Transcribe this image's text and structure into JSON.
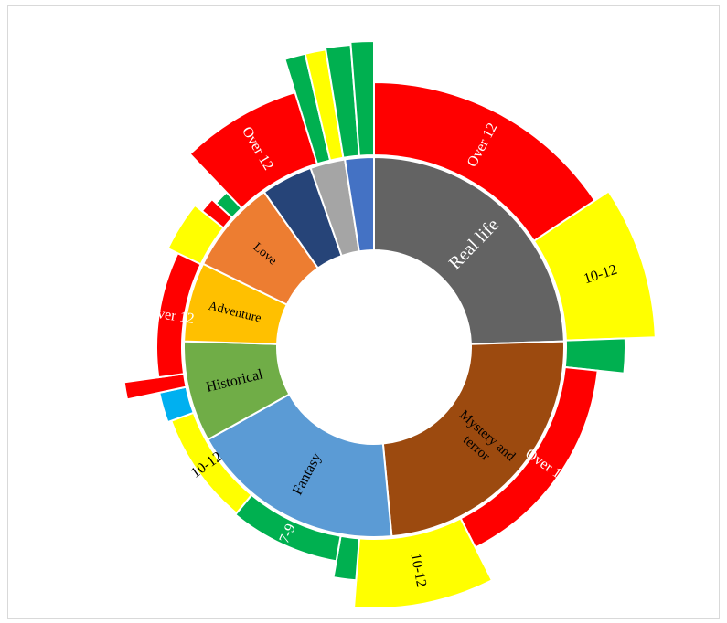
{
  "chart_data": {
    "type": "sunburst",
    "title": "",
    "colors": {
      "age_over_12": "#ff0000",
      "age_10_12": "#ffff00",
      "age_7_9": "#00b050",
      "age_other": "#00b0f0"
    },
    "inner_ring": [
      {
        "label": "Real life",
        "value": 24.0,
        "color": "#636363",
        "text_color": "#ffffff"
      },
      {
        "label": "Mystery and terror",
        "value": 23.5,
        "color": "#9c4a0f",
        "text_color": "#000000"
      },
      {
        "label": "Fantasy",
        "value": 18.0,
        "color": "#5b9bd5",
        "text_color": "#000000"
      },
      {
        "label": "Historical",
        "value": 8.4,
        "color": "#70ad47",
        "text_color": "#000000"
      },
      {
        "label": "Adventure",
        "value": 6.6,
        "color": "#ffc000",
        "text_color": "#000000"
      },
      {
        "label": "Love",
        "value": 7.8,
        "color": "#ed7d31",
        "text_color": "#000000"
      },
      {
        "label": "",
        "value": 4.3,
        "color": "#264478",
        "text_color": "#ffffff"
      },
      {
        "label": "",
        "value": 2.9,
        "color": "#a5a5a5",
        "text_color": "#ffffff"
      },
      {
        "label": "",
        "value": 2.4,
        "color": "#4472c4",
        "text_color": "#ffffff"
      }
    ],
    "outer_ring": [
      {
        "parent": "Real life",
        "label": "Over 12",
        "value": 14.1,
        "color": "#ff0000"
      },
      {
        "parent": "Real life",
        "label": "10-12",
        "value": 7.9,
        "color": "#ffff00"
      },
      {
        "parent": "Real life",
        "label": "",
        "value": 2.0,
        "color": "#00b050"
      },
      {
        "parent": "Mystery and terror",
        "label": "Over 12",
        "value": 14.3,
        "color": "#ff0000"
      },
      {
        "parent": "Mystery and terror",
        "label": "10-12",
        "value": 7.8,
        "color": "#ffff00"
      },
      {
        "parent": "Mystery and terror",
        "label": "",
        "value": 1.4,
        "color": "#00b050"
      },
      {
        "parent": "Fantasy",
        "label": "7-9",
        "value": 7.4,
        "color": "#00b050"
      },
      {
        "parent": "Fantasy",
        "label": "10-12",
        "value": 7.6,
        "color": "#ffff00"
      },
      {
        "parent": "Fantasy",
        "label": "",
        "value": 2.0,
        "color": "#00b0f0"
      },
      {
        "parent": "Fantasy",
        "label": "",
        "value": 1.0,
        "color": "#ff0000"
      },
      {
        "parent": "Historical",
        "label": "Over 12",
        "value": 8.4,
        "color": "#ff0000"
      },
      {
        "parent": "Adventure",
        "label": "",
        "value": 3.2,
        "color": "#ffff00"
      },
      {
        "parent": "Adventure",
        "label": "",
        "value": 1.0,
        "color": "#ff0000"
      },
      {
        "parent": "Adventure",
        "label": "",
        "value": 1.0,
        "color": "#00b050"
      },
      {
        "parent": "Love",
        "label": "Over 12",
        "value": 6.6,
        "color": "#ff0000"
      },
      {
        "parent": "",
        "label": "",
        "value": 1.0,
        "color": "#00b050"
      },
      {
        "parent": "",
        "label": "",
        "value": 1.0,
        "color": "#ffff00"
      },
      {
        "parent": "",
        "label": "",
        "value": 1.2,
        "color": "#00b050"
      },
      {
        "parent": "",
        "label": "",
        "value": 1.1,
        "color": "#00b050"
      }
    ]
  }
}
